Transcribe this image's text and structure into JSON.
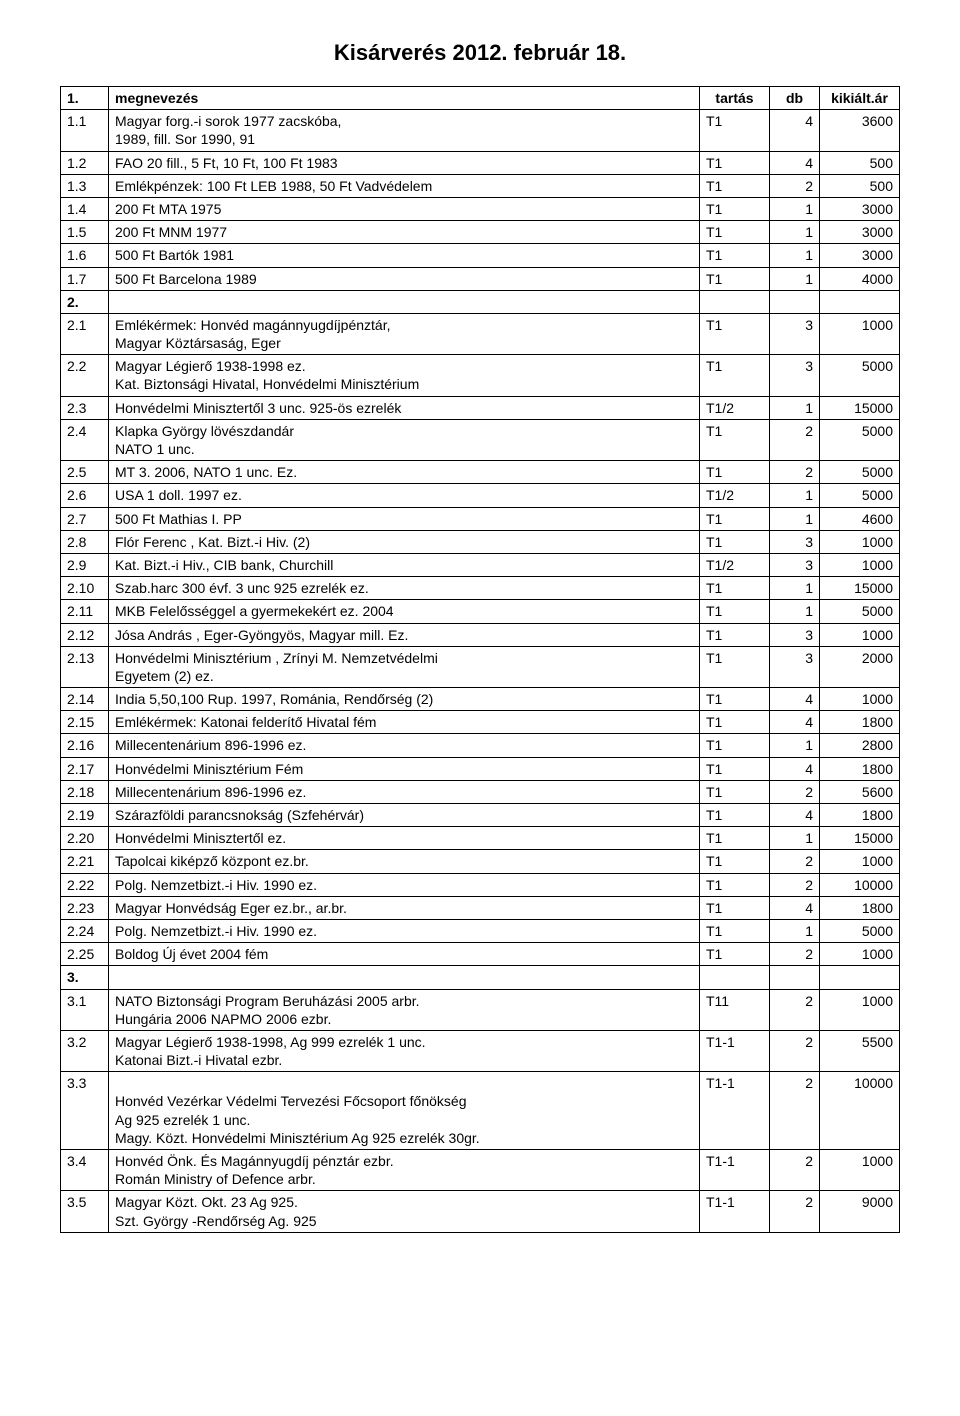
{
  "title": "Kisárverés  2012. február  18.",
  "headers": {
    "num": "1.",
    "name": "megnevezés",
    "tartas": "tartás",
    "db": "db",
    "ar": "kikiált.ár"
  },
  "rows": [
    {
      "num": "1.1",
      "name": "Magyar forg.-i sorok 1977 zacskóba,\n1989, fill. Sor 1990, 91",
      "tartas": "T1",
      "db": "4",
      "ar": "3600"
    },
    {
      "num": "1.2",
      "name": "FAO  20 fill., 5 Ft, 10 Ft, 100 Ft 1983",
      "tartas": "T1",
      "db": "4",
      "ar": "500"
    },
    {
      "num": "1.3",
      "name": "Emlékpénzek: 100 Ft LEB 1988, 50 Ft Vadvédelem",
      "tartas": "T1",
      "db": "2",
      "ar": "500"
    },
    {
      "num": "1.4",
      "name": "200 Ft MTA 1975",
      "tartas": "T1",
      "db": "1",
      "ar": "3000"
    },
    {
      "num": "1.5",
      "name": "200 Ft MNM 1977",
      "tartas": "T1",
      "db": "1",
      "ar": "3000"
    },
    {
      "num": "1.6",
      "name": "500 Ft Bartók 1981",
      "tartas": "T1",
      "db": "1",
      "ar": "3000"
    },
    {
      "num": "1.7",
      "name": "500 Ft Barcelona 1989",
      "tartas": "T1",
      "db": "1",
      "ar": "4000"
    },
    {
      "num": "2.",
      "bold": true
    },
    {
      "num": "2.1",
      "name": "Emlékérmek: Honvéd magánnyugdíjpénztár,\nMagyar Köztársaság, Eger",
      "tartas": "T1",
      "db": "3",
      "ar": "1000"
    },
    {
      "num": "2.2",
      "name": "Magyar Légierő 1938-1998 ez.\nKat. Biztonsági Hivatal, Honvédelmi Minisztérium",
      "tartas": "T1",
      "db": "3",
      "ar": "5000"
    },
    {
      "num": "2.3",
      "name": "Honvédelmi Minisztertől  3 unc.  925-ös ezrelék",
      "tartas": "T1/2",
      "db": "1",
      "ar": "15000"
    },
    {
      "num": "2.4",
      "name": "Klapka György lövészdandár\nNATO 1 unc.",
      "tartas": "T1",
      "db": "2",
      "ar": "5000"
    },
    {
      "num": "2.5",
      "name": "MT 3. 2006, NATO 1 unc. Ez.",
      "tartas": "T1",
      "db": "2",
      "ar": "5000"
    },
    {
      "num": "2.6",
      "name": "USA 1 doll. 1997 ez.",
      "tartas": "T1/2",
      "db": "1",
      "ar": "5000"
    },
    {
      "num": "2.7",
      "name": "500 Ft Mathias I. PP",
      "tartas": "T1",
      "db": "1",
      "ar": "4600"
    },
    {
      "num": "2.8",
      "name": "Flór Ferenc , Kat. Bizt.-i Hiv. (2)",
      "tartas": "T1",
      "db": "3",
      "ar": "1000"
    },
    {
      "num": "2.9",
      "name": "Kat. Bizt.-i Hiv., CIB bank, Churchill",
      "tartas": "T1/2",
      "db": "3",
      "ar": "1000"
    },
    {
      "num": "2.10",
      "name": "Szab.harc 300 évf.  3 unc  925 ezrelék ez.",
      "tartas": "T1",
      "db": "1",
      "ar": "15000"
    },
    {
      "num": "2.11",
      "name": "MKB Felelősséggel a gyermekekért ez. 2004",
      "tartas": "T1",
      "db": "1",
      "ar": "5000"
    },
    {
      "num": "2.12",
      "name": "Jósa András , Eger-Gyöngyös, Magyar mill. Ez.",
      "tartas": "T1",
      "db": "3",
      "ar": "1000"
    },
    {
      "num": "2.13",
      "name": "Honvédelmi Minisztérium , Zrínyi M. Nemzetvédelmi\nEgyetem  (2) ez.",
      "tartas": "T1",
      "db": "3",
      "ar": "2000"
    },
    {
      "num": "2.14",
      "name": "India 5,50,100 Rup. 1997, Románia, Rendőrség (2)",
      "tartas": "T1",
      "db": "4",
      "ar": "1000"
    },
    {
      "num": "2.15",
      "name": "Emlékérmek: Katonai felderítő Hivatal   fém",
      "tartas": "T1",
      "db": "4",
      "ar": "1800"
    },
    {
      "num": "2.16",
      "name": "Millecentenárium  896-1996  ez.",
      "tartas": "T1",
      "db": "1",
      "ar": "2800"
    },
    {
      "num": "2.17",
      "name": "Honvédelmi Minisztérium   Fém",
      "tartas": "T1",
      "db": "4",
      "ar": "1800"
    },
    {
      "num": "2.18",
      "name": "Millecentenárium  896-1996  ez.",
      "tartas": "T1",
      "db": "2",
      "ar": "5600"
    },
    {
      "num": "2.19",
      "name": "Szárazföldi parancsnokság  (Szfehérvár)",
      "tartas": "T1",
      "db": "4",
      "ar": "1800"
    },
    {
      "num": "2.20",
      "name": "Honvédelmi Minisztertől  ez.",
      "tartas": "T1",
      "db": "1",
      "ar": "15000"
    },
    {
      "num": "2.21",
      "name": "Tapolcai kiképző központ  ez.br.",
      "tartas": "T1",
      "db": "2",
      "ar": "1000"
    },
    {
      "num": "2.22",
      "name": "Polg. Nemzetbizt.-i Hiv.   1990  ez.",
      "tartas": "T1",
      "db": "2",
      "ar": "10000"
    },
    {
      "num": "2.23",
      "name": "Magyar Honvédság Eger  ez.br., ar.br.",
      "tartas": "T1",
      "db": "4",
      "ar": "1800"
    },
    {
      "num": "2.24",
      "name": "Polg. Nemzetbizt.-i Hiv.   1990 ez.",
      "tartas": "T1",
      "db": "1",
      "ar": "5000"
    },
    {
      "num": "2.25",
      "name": "Boldog Új évet  2004  fém",
      "tartas": "T1",
      "db": "2",
      "ar": "1000"
    },
    {
      "num": "3.",
      "bold": true
    },
    {
      "num": "3.1",
      "name": "NATO Biztonsági Program Beruházási  2005 arbr.\nHungária 2006 NAPMO 2006 ezbr.",
      "tartas": "T11",
      "db": "2",
      "ar": "1000"
    },
    {
      "num": "3.2",
      "name": "Magyar Légierő 1938-1998, Ag 999 ezrelék  1 unc.\nKatonai Bizt.-i Hivatal  ezbr.",
      "tartas": "T1-1",
      "db": "2",
      "ar": "5500"
    },
    {
      "num": "3.3",
      "name": "\nHonvéd Vezérkar Védelmi Tervezési Főcsoport főnökség\nAg  925 ezrelék 1 unc.\nMagy. Közt. Honvédelmi Minisztérium Ag 925 ezrelék  30gr.",
      "tartas": "T1-1",
      "db": "2",
      "ar": "10000"
    },
    {
      "num": "3.4",
      "name": "Honvéd Önk. És Magánnyugdíj pénztár ezbr.\nRomán Ministry of Defence  arbr.",
      "tartas": "T1-1",
      "db": "2",
      "ar": "1000"
    },
    {
      "num": "3.5",
      "name": "Magyar Közt. Okt. 23 Ag 925.\nSzt. György -Rendőrség  Ag. 925",
      "tartas": "T1-1",
      "db": "2",
      "ar": "9000"
    }
  ]
}
